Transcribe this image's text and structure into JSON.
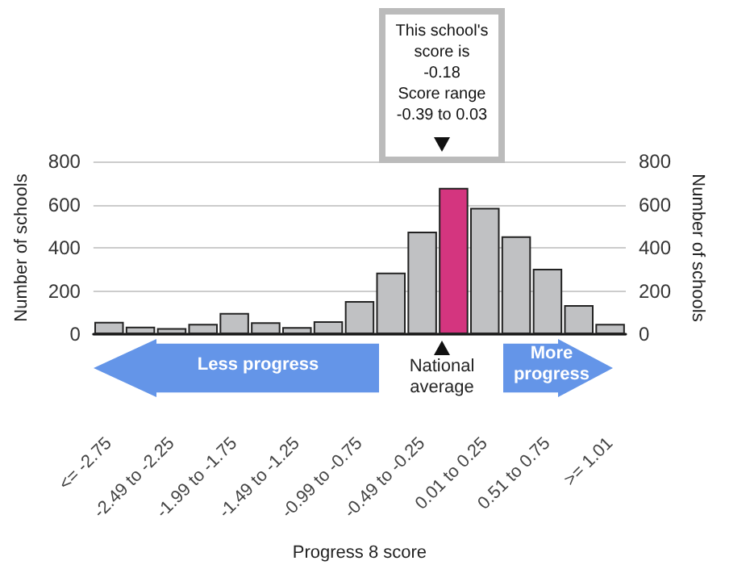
{
  "chart_data": {
    "type": "bar",
    "xlabel": "Progress 8 score",
    "ylabel": "Number of schools",
    "y2label": "Number of schools",
    "categories": [
      "<= -2.75",
      null,
      "-2.49 to -2.25",
      null,
      "-1.99 to -1.75",
      null,
      "-1.49 to -1.25",
      null,
      "-0.99 to -0.75",
      null,
      "-0.49 to -0.25",
      null,
      "0.01 to 0.25",
      null,
      "0.51 to 0.75",
      null,
      ">= 1.01"
    ],
    "values": [
      57,
      35,
      28,
      48,
      98,
      55,
      33,
      60,
      153,
      285,
      475,
      678,
      585,
      453,
      303,
      135,
      48
    ],
    "colors": [
      "#c0c1c3",
      "#c0c1c3",
      "#c0c1c3",
      "#c0c1c3",
      "#c0c1c3",
      "#c0c1c3",
      "#c0c1c3",
      "#c0c1c3",
      "#c0c1c3",
      "#c0c1c3",
      "#c0c1c3",
      "#d4357f",
      "#c0c1c3",
      "#c0c1c3",
      "#c0c1c3",
      "#c0c1c3",
      "#c0c1c3"
    ],
    "ylim": [
      0,
      800
    ],
    "yticks": [
      0,
      200,
      400,
      600,
      800
    ],
    "y2lim": [
      0,
      800
    ],
    "y2ticks": [
      0,
      200,
      400,
      600,
      800
    ],
    "grid": "y",
    "annotations": [
      "This school's\nscore is\n-0.18\nScore range\n-0.39 to 0.03",
      "Less progress",
      "National\naverage",
      "More\nprogress"
    ]
  }
}
